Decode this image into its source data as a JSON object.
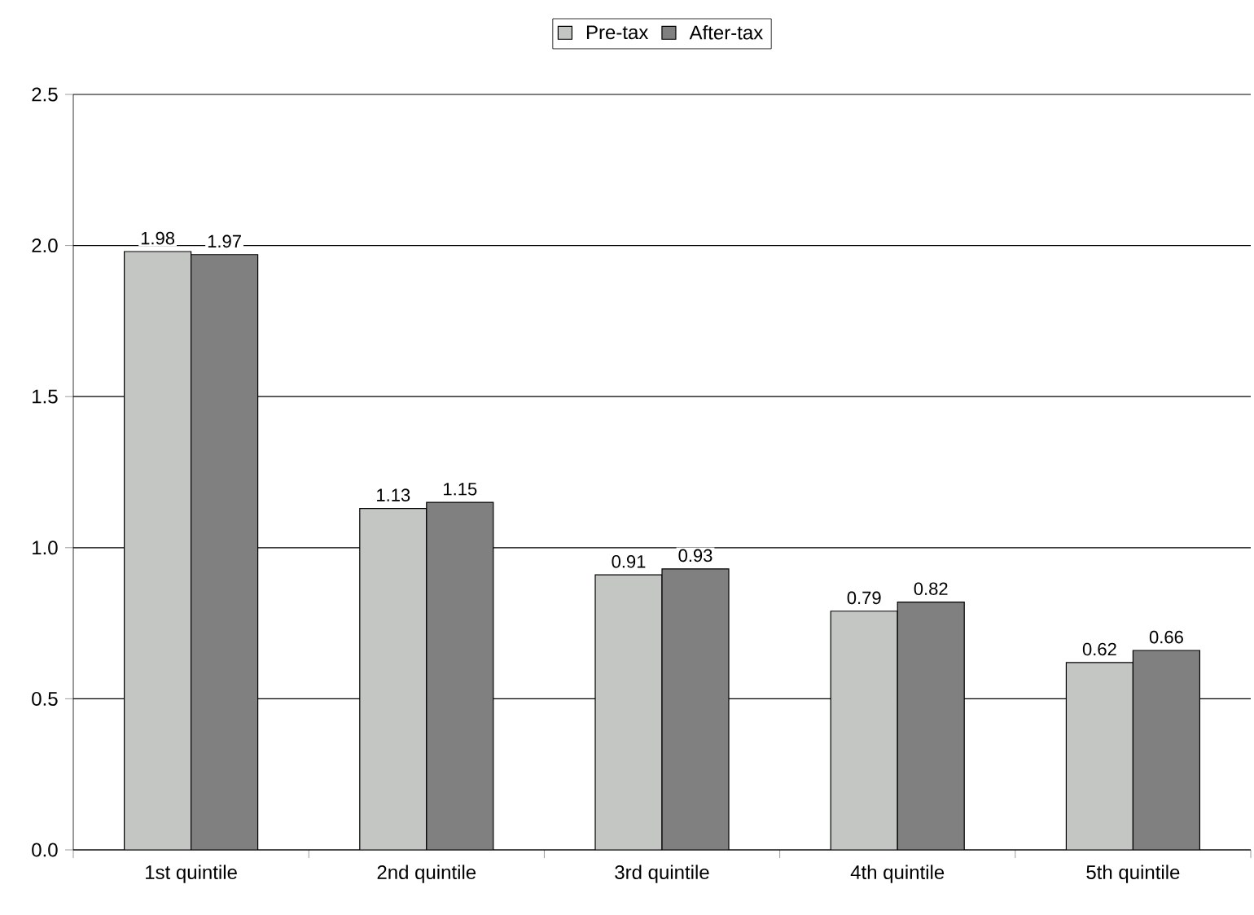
{
  "chart_data": {
    "type": "bar",
    "categories": [
      "1st quintile",
      "2nd quintile",
      "3rd quintile",
      "4th quintile",
      "5th quintile"
    ],
    "series": [
      {
        "name": "Pre-tax",
        "color": "#c4c6c4",
        "values": [
          1.98,
          1.13,
          0.91,
          0.79,
          0.62
        ]
      },
      {
        "name": "After-tax",
        "color": "#808080",
        "values": [
          1.97,
          1.15,
          0.93,
          0.82,
          0.66
        ]
      }
    ],
    "ylim": [
      0,
      2.5
    ],
    "yticks": [
      {
        "value": 0,
        "label": "0.0"
      },
      0.5,
      {
        "value": 1,
        "label": "1.0"
      },
      1.5,
      {
        "value": 2,
        "label": "2.0"
      },
      2.5
    ],
    "grid": "y",
    "legend": "top",
    "data_labels": true
  }
}
